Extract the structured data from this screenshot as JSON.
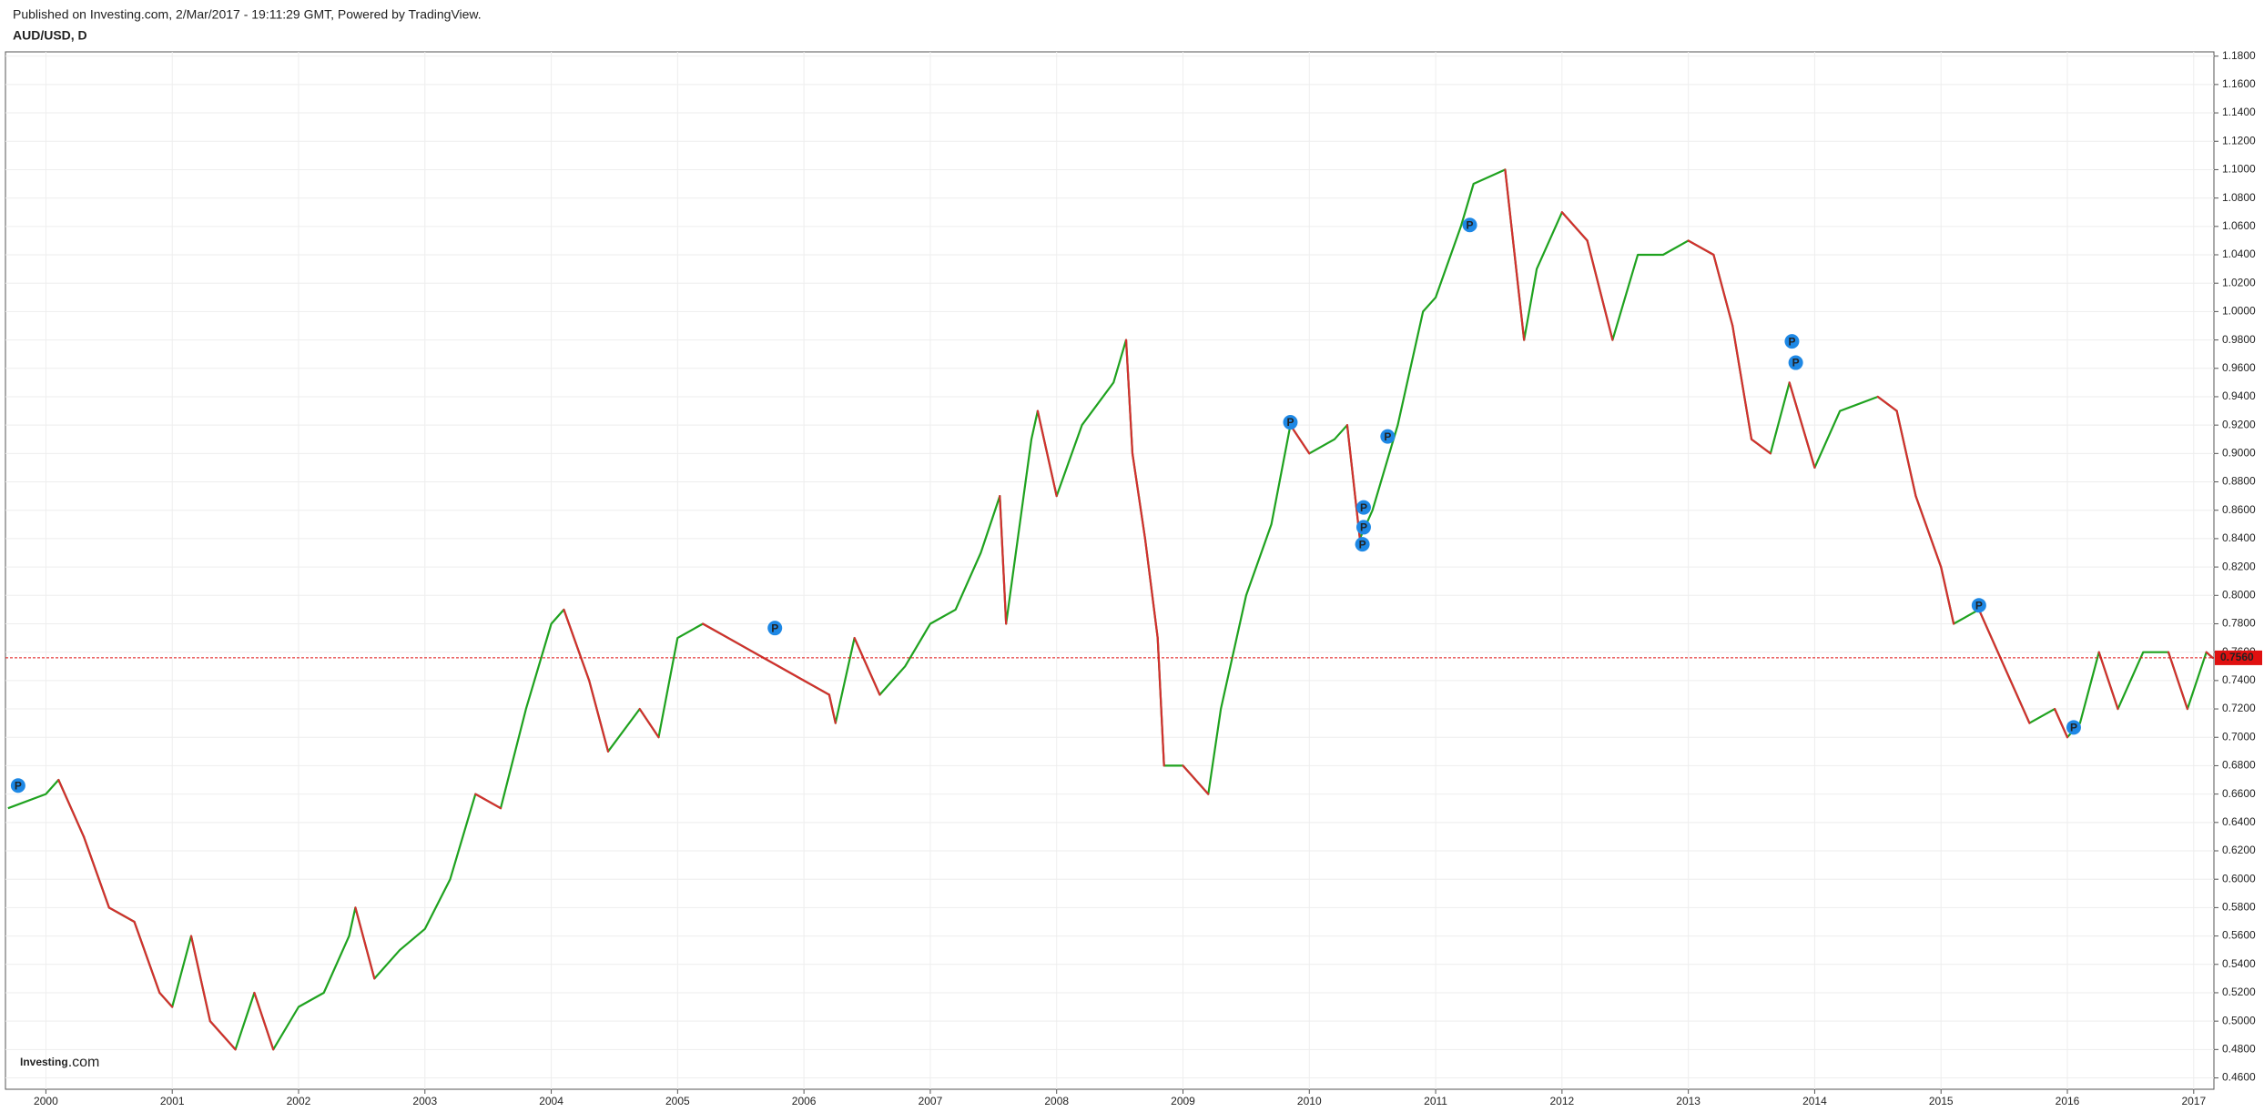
{
  "chart_data": {
    "type": "line",
    "header": "Published on Investing.com, 2/Mar/2017 - 19:11:29 GMT, Powered by TradingView.",
    "title": "AUD/USD, D",
    "watermark": "Investing",
    "watermark_suffix": ".com",
    "x": [
      1999.7,
      2000.0,
      2000.1,
      2000.3,
      2000.5,
      2000.7,
      2000.9,
      2001.0,
      2001.15,
      2001.3,
      2001.5,
      2001.65,
      2001.8,
      2002.0,
      2002.2,
      2002.4,
      2002.45,
      2002.6,
      2002.8,
      2003.0,
      2003.2,
      2003.4,
      2003.6,
      2003.8,
      2004.0,
      2004.1,
      2004.3,
      2004.45,
      2004.7,
      2004.85,
      2005.0,
      2005.2,
      2005.4,
      2005.6,
      2005.8,
      2006.0,
      2006.2,
      2006.25,
      2006.4,
      2006.6,
      2006.8,
      2007.0,
      2007.2,
      2007.4,
      2007.55,
      2007.6,
      2007.8,
      2007.85,
      2008.0,
      2008.2,
      2008.45,
      2008.55,
      2008.6,
      2008.7,
      2008.8,
      2008.85,
      2009.0,
      2009.2,
      2009.3,
      2009.5,
      2009.7,
      2009.85,
      2010.0,
      2010.2,
      2010.3,
      2010.4,
      2010.5,
      2010.7,
      2010.9,
      2011.0,
      2011.2,
      2011.3,
      2011.55,
      2011.7,
      2011.8,
      2012.0,
      2012.2,
      2012.4,
      2012.6,
      2012.8,
      2013.0,
      2013.2,
      2013.35,
      2013.5,
      2013.65,
      2013.8,
      2014.0,
      2014.2,
      2014.5,
      2014.65,
      2014.8,
      2015.0,
      2015.1,
      2015.3,
      2015.5,
      2015.7,
      2015.9,
      2016.0,
      2016.1,
      2016.25,
      2016.4,
      2016.6,
      2016.8,
      2016.95,
      2017.1,
      2017.15
    ],
    "series": [
      {
        "name": "AUD/USD",
        "color": "#1fa21f",
        "down_color": "#d32f2f",
        "values": [
          0.65,
          0.66,
          0.67,
          0.63,
          0.58,
          0.57,
          0.52,
          0.51,
          0.56,
          0.5,
          0.48,
          0.52,
          0.48,
          0.51,
          0.52,
          0.56,
          0.58,
          0.53,
          0.55,
          0.565,
          0.6,
          0.66,
          0.65,
          0.72,
          0.78,
          0.79,
          0.74,
          0.69,
          0.72,
          0.7,
          0.77,
          0.78,
          0.77,
          0.76,
          0.75,
          0.74,
          0.73,
          0.71,
          0.77,
          0.73,
          0.75,
          0.78,
          0.79,
          0.83,
          0.87,
          0.78,
          0.91,
          0.93,
          0.87,
          0.92,
          0.95,
          0.98,
          0.9,
          0.84,
          0.77,
          0.68,
          0.68,
          0.66,
          0.72,
          0.8,
          0.85,
          0.92,
          0.9,
          0.91,
          0.92,
          0.84,
          0.86,
          0.92,
          1.0,
          1.01,
          1.06,
          1.09,
          1.1,
          0.98,
          1.03,
          1.07,
          1.05,
          0.98,
          1.04,
          1.04,
          1.05,
          1.04,
          0.99,
          0.91,
          0.9,
          0.95,
          0.89,
          0.93,
          0.94,
          0.93,
          0.87,
          0.82,
          0.78,
          0.79,
          0.75,
          0.71,
          0.72,
          0.7,
          0.71,
          0.76,
          0.72,
          0.76,
          0.76,
          0.72,
          0.76,
          0.756
        ]
      }
    ],
    "last_price": {
      "value": 0.756,
      "label": "0.7560"
    },
    "markers": [
      {
        "x": 1999.78,
        "y": 0.666,
        "label": "P"
      },
      {
        "x": 2005.77,
        "y": 0.777,
        "label": "P"
      },
      {
        "x": 2009.85,
        "y": 0.922,
        "label": "P"
      },
      {
        "x": 2010.43,
        "y": 0.862,
        "label": "P"
      },
      {
        "x": 2010.43,
        "y": 0.848,
        "label": "P"
      },
      {
        "x": 2010.42,
        "y": 0.836,
        "label": "P"
      },
      {
        "x": 2010.62,
        "y": 0.912,
        "label": "P"
      },
      {
        "x": 2011.27,
        "y": 1.061,
        "label": "P"
      },
      {
        "x": 2013.82,
        "y": 0.979,
        "label": "P"
      },
      {
        "x": 2013.85,
        "y": 0.964,
        "label": "P"
      },
      {
        "x": 2015.3,
        "y": 0.793,
        "label": "P"
      },
      {
        "x": 2016.05,
        "y": 0.707,
        "label": "P"
      }
    ],
    "xlim": [
      1999.68,
      2017.16
    ],
    "xticks": [
      2000,
      2001,
      2002,
      2003,
      2004,
      2005,
      2006,
      2007,
      2008,
      2009,
      2010,
      2011,
      2012,
      2013,
      2014,
      2015,
      2016,
      2017
    ],
    "ylim": [
      0.452,
      1.183
    ],
    "yticks": [
      {
        "value": 0.46,
        "label": "0.4600"
      },
      {
        "value": 0.48,
        "label": "0.4800"
      },
      {
        "value": 0.5,
        "label": "0.5000"
      },
      {
        "value": 0.52,
        "label": "0.5200"
      },
      {
        "value": 0.54,
        "label": "0.5400"
      },
      {
        "value": 0.56,
        "label": "0.5600"
      },
      {
        "value": 0.58,
        "label": "0.5800"
      },
      {
        "value": 0.6,
        "label": "0.6000"
      },
      {
        "value": 0.62,
        "label": "0.6200"
      },
      {
        "value": 0.64,
        "label": "0.6400"
      },
      {
        "value": 0.66,
        "label": "0.6600"
      },
      {
        "value": 0.68,
        "label": "0.6800"
      },
      {
        "value": 0.7,
        "label": "0.7000"
      },
      {
        "value": 0.72,
        "label": "0.7200"
      },
      {
        "value": 0.74,
        "label": "0.7400"
      },
      {
        "value": 0.76,
        "label": "0.7600"
      },
      {
        "value": 0.78,
        "label": "0.7800"
      },
      {
        "value": 0.8,
        "label": "0.8000"
      },
      {
        "value": 0.82,
        "label": "0.8200"
      },
      {
        "value": 0.84,
        "label": "0.8400"
      },
      {
        "value": 0.86,
        "label": "0.8600"
      },
      {
        "value": 0.88,
        "label": "0.8800"
      },
      {
        "value": 0.9,
        "label": "0.9000"
      },
      {
        "value": 0.92,
        "label": "0.9200"
      },
      {
        "value": 0.94,
        "label": "0.9400"
      },
      {
        "value": 0.96,
        "label": "0.9600"
      },
      {
        "value": 0.98,
        "label": "0.9800"
      },
      {
        "value": 1.0,
        "label": "1.0000"
      },
      {
        "value": 1.02,
        "label": "1.0200"
      },
      {
        "value": 1.04,
        "label": "1.0400"
      },
      {
        "value": 1.06,
        "label": "1.0600"
      },
      {
        "value": 1.08,
        "label": "1.0800"
      },
      {
        "value": 1.1,
        "label": "1.1000"
      },
      {
        "value": 1.12,
        "label": "1.1200"
      },
      {
        "value": 1.14,
        "label": "1.1400"
      },
      {
        "value": 1.16,
        "label": "1.1600"
      },
      {
        "value": 1.18,
        "label": "1.1800"
      }
    ],
    "grid": true,
    "marker_color": "#1e88e5",
    "last_price_color": "#e01010"
  }
}
